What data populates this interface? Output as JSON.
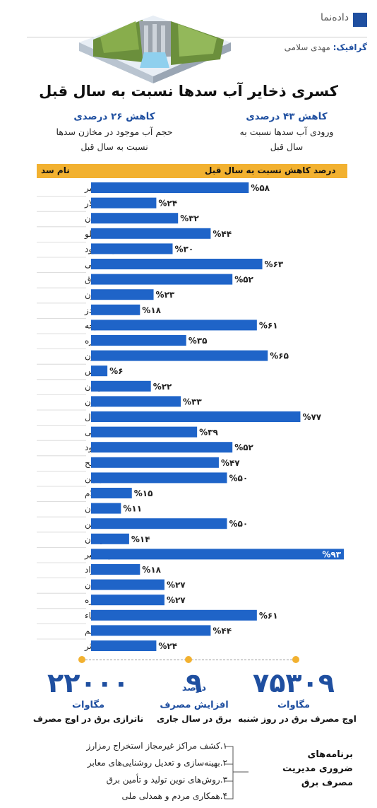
{
  "brand": "داده‌نما",
  "credit": {
    "label": "گرافیک:",
    "name": "مهدی سلامی"
  },
  "title": "کسری ذخایر آب سدها نسبت به سال قبل",
  "stats_top": {
    "right": {
      "highlight": "کاهش ۴۳ درصدی",
      "line1": "ورودی آب سدها نسبت به",
      "line2": "سال قبل"
    },
    "left": {
      "highlight": "کاهش ۲۶ درصدی",
      "line1": "حجم آب موجود در مخازن سدها",
      "line2": "نسبت به سال قبل"
    }
  },
  "colors": {
    "bar": "#1f64c8",
    "header": "#f2b130",
    "accent": "#1f4fa0"
  },
  "chart_data": {
    "type": "bar",
    "orientation": "horizontal",
    "xlabel": "درصد کاهش نسبت به سال قبل",
    "ylabel": "نام سد",
    "xlim": [
      0,
      93
    ],
    "categories": [
      "امیرکبیر",
      "لار",
      "طالقان",
      "لتیان-ماملو",
      "زاینده‌رود",
      "دوستی",
      "طرق",
      "زنجیره کارون",
      "دز",
      "کرخه",
      "جره",
      "مارون",
      "ارس",
      "ستارخان",
      "بارون",
      "استقلال",
      "سرنی",
      "سفیدرود",
      "کمال صالح",
      "نهرین",
      "ایلام",
      "دامغان",
      "پیشین",
      "گاوشان",
      "وشمگیر",
      "آزاد",
      "اکباتان",
      "شیرین دره",
      "نساء",
      "تهم",
      "کوثر"
    ],
    "values": [
      58,
      24,
      32,
      44,
      30,
      63,
      52,
      23,
      18,
      61,
      35,
      65,
      6,
      22,
      33,
      77,
      39,
      52,
      47,
      50,
      15,
      11,
      50,
      14,
      93,
      18,
      27,
      27,
      61,
      44,
      24
    ],
    "value_labels": [
      "%۵۸",
      "%۲۴",
      "%۳۲",
      "%۴۴",
      "%۳۰",
      "%۶۳",
      "%۵۲",
      "%۲۳",
      "%۱۸",
      "%۶۱",
      "%۳۵",
      "%۶۵",
      "%۶",
      "%۲۲",
      "%۳۳",
      "%۷۷",
      "%۳۹",
      "%۵۲",
      "%۴۷",
      "%۵۰",
      "%۱۵",
      "%۱۱",
      "%۵۰",
      "%۱۴",
      "%۹۳",
      "%۱۸",
      "%۲۷",
      "%۲۷",
      "%۶۱",
      "%۴۴",
      "%۲۴"
    ]
  },
  "bottom_stats": [
    {
      "number": "۷۵۳۰۹",
      "unit": "مگاوات",
      "desc": "اوج مصرف برق در روز شنبه"
    },
    {
      "number": "۹",
      "unit": "درصد",
      "unit2": "افزایش مصرف",
      "desc": "برق در سال جاری"
    },
    {
      "number": "۲۲۰۰۰",
      "unit": "مگاوات",
      "desc": "ناترازی برق در اوج مصرف"
    }
  ],
  "programs": {
    "title_line1": "برنامه‌های",
    "title_line2": "ضروری مدیریت",
    "title_line3": "مصرف برق",
    "items": [
      "۱.کشف مراکز غیرمجاز استخراج رمزارز",
      "۲.بهینه‌سازی و تعدیل روشنایی‌های معابر",
      "۳.روش‌های نوین تولید و تأمین برق",
      "۴.همکاری مردم و همدلی ملی"
    ]
  }
}
